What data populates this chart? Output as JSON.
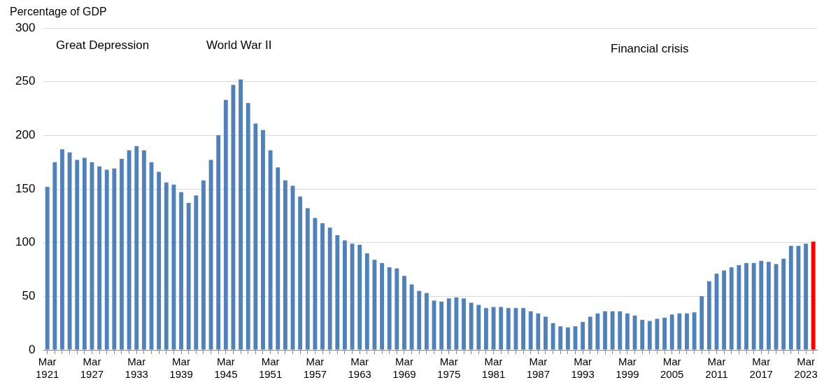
{
  "chart_data": {
    "type": "bar",
    "ylabel": "Percentage of GDP",
    "categories": [
      "Mar 1921",
      null,
      null,
      null,
      null,
      null,
      "Mar 1927",
      null,
      null,
      null,
      null,
      null,
      "Mar 1933",
      null,
      null,
      null,
      null,
      null,
      "Mar 1939",
      null,
      null,
      null,
      null,
      null,
      "Mar 1945",
      null,
      null,
      null,
      null,
      null,
      "Mar 1951",
      null,
      null,
      null,
      null,
      null,
      "Mar 1957",
      null,
      null,
      null,
      null,
      null,
      "Mar 1963",
      null,
      null,
      null,
      null,
      null,
      "Mar 1969",
      null,
      null,
      null,
      null,
      null,
      "Mar 1975",
      null,
      null,
      null,
      null,
      null,
      "Mar 1981",
      null,
      null,
      null,
      null,
      null,
      "Mar 1987",
      null,
      null,
      null,
      null,
      null,
      "Mar 1993",
      null,
      null,
      null,
      null,
      null,
      "Mar 1999",
      null,
      null,
      null,
      null,
      null,
      "Mar 2005",
      null,
      null,
      null,
      null,
      null,
      "Mar 2011",
      null,
      null,
      null,
      null,
      null,
      "Mar 2017",
      null,
      null,
      null,
      null,
      null,
      "Mar 2023",
      null
    ],
    "values": [
      152,
      175,
      187,
      184,
      177,
      179,
      175,
      171,
      168,
      169,
      178,
      186,
      190,
      186,
      175,
      166,
      156,
      154,
      147,
      137,
      144,
      158,
      177,
      200,
      233,
      247,
      252,
      230,
      211,
      205,
      186,
      170,
      158,
      153,
      143,
      132,
      123,
      118,
      114,
      107,
      102,
      99,
      98,
      90,
      84,
      81,
      77,
      76,
      69,
      61,
      55,
      53,
      46,
      45,
      48,
      49,
      48,
      44,
      42,
      39,
      40,
      40,
      39,
      39,
      39,
      36,
      34,
      31,
      25,
      22,
      21,
      22,
      26,
      31,
      34,
      36,
      36,
      36,
      34,
      32,
      28,
      27,
      29,
      30,
      33,
      34,
      34,
      35,
      50,
      64,
      71,
      74,
      77,
      79,
      81,
      81,
      83,
      82,
      80,
      85,
      97,
      97,
      99,
      101
    ],
    "colors": [
      "#4f81bd",
      "#4f81bd",
      "#4f81bd",
      "#4f81bd",
      "#4f81bd",
      "#4f81bd",
      "#4f81bd",
      "#4f81bd",
      "#4f81bd",
      "#4f81bd",
      "#4f81bd",
      "#4f81bd",
      "#4f81bd",
      "#4f81bd",
      "#4f81bd",
      "#4f81bd",
      "#4f81bd",
      "#4f81bd",
      "#4f81bd",
      "#4f81bd",
      "#4f81bd",
      "#4f81bd",
      "#4f81bd",
      "#4f81bd",
      "#4f81bd",
      "#4f81bd",
      "#4f81bd",
      "#4f81bd",
      "#4f81bd",
      "#4f81bd",
      "#4f81bd",
      "#4f81bd",
      "#4f81bd",
      "#4f81bd",
      "#4f81bd",
      "#4f81bd",
      "#4f81bd",
      "#4f81bd",
      "#4f81bd",
      "#4f81bd",
      "#4f81bd",
      "#4f81bd",
      "#4f81bd",
      "#4f81bd",
      "#4f81bd",
      "#4f81bd",
      "#4f81bd",
      "#4f81bd",
      "#4f81bd",
      "#4f81bd",
      "#4f81bd",
      "#4f81bd",
      "#4f81bd",
      "#4f81bd",
      "#4f81bd",
      "#4f81bd",
      "#4f81bd",
      "#4f81bd",
      "#4f81bd",
      "#4f81bd",
      "#4f81bd",
      "#4f81bd",
      "#4f81bd",
      "#4f81bd",
      "#4f81bd",
      "#4f81bd",
      "#4f81bd",
      "#4f81bd",
      "#4f81bd",
      "#4f81bd",
      "#4f81bd",
      "#4f81bd",
      "#4f81bd",
      "#4f81bd",
      "#4f81bd",
      "#4f81bd",
      "#4f81bd",
      "#4f81bd",
      "#4f81bd",
      "#4f81bd",
      "#4f81bd",
      "#4f81bd",
      "#4f81bd",
      "#4f81bd",
      "#4f81bd",
      "#4f81bd",
      "#4f81bd",
      "#4f81bd",
      "#4f81bd",
      "#4f81bd",
      "#4f81bd",
      "#4f81bd",
      "#4f81bd",
      "#4f81bd",
      "#4f81bd",
      "#4f81bd",
      "#4f81bd",
      "#4f81bd",
      "#4f81bd",
      "#4f81bd",
      "#4f81bd",
      "#4f81bd",
      "#4f81bd",
      "#ff0000"
    ],
    "ylim": [
      0,
      300
    ],
    "yticks": [
      0,
      50,
      100,
      150,
      200,
      250,
      300
    ],
    "grid": "y",
    "annotations": [
      "Great Depression",
      "World War II",
      "Financial crisis"
    ]
  }
}
